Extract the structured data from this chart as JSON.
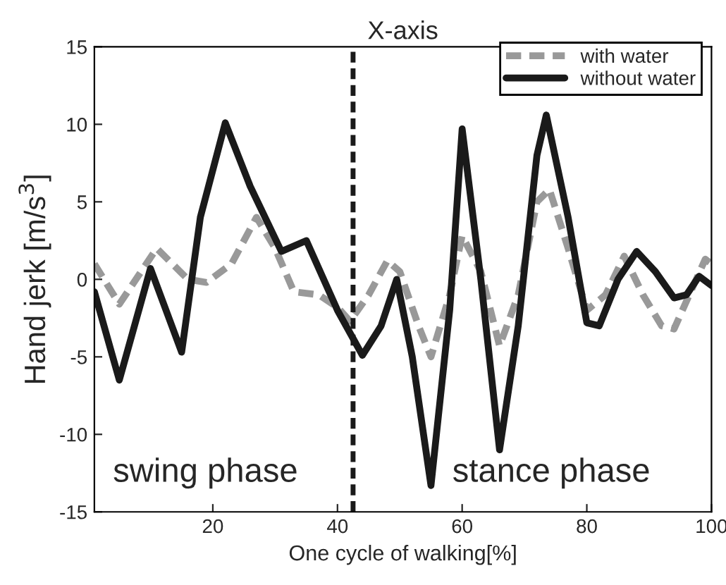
{
  "chart_data": {
    "type": "line",
    "title": "X-axis",
    "xlabel": "One cycle of walking[%]",
    "ylabel": "Hand jerk [m/s$^{3}$]",
    "xlim": [
      1,
      100
    ],
    "ylim": [
      -15,
      15
    ],
    "xticks": [
      20,
      40,
      60,
      80,
      100
    ],
    "yticks": [
      -15,
      -10,
      -5,
      0,
      5,
      10,
      15
    ],
    "grid": false,
    "legend": "top right",
    "series": [
      {
        "name": "with water",
        "color": "#999999",
        "line_style": "dashed",
        "x": [
          1,
          5,
          11,
          16,
          19,
          23,
          27,
          30,
          33,
          37,
          40,
          42,
          45,
          48,
          50,
          53,
          55,
          58,
          60,
          63,
          66,
          69,
          72,
          74,
          77,
          80,
          83,
          86,
          89,
          92,
          94,
          97,
          99,
          100
        ],
        "values": [
          1,
          -1.6,
          2,
          0,
          -0.2,
          1,
          4,
          2,
          -0.8,
          -1,
          -1.8,
          -2.7,
          -1,
          1.2,
          0.5,
          -3,
          -5,
          -1,
          2.8,
          0.5,
          -4.3,
          -1,
          5,
          5.8,
          2,
          -2,
          -1,
          1.5,
          -1,
          -3,
          -3.2,
          -0.5,
          1.3,
          1
        ]
      },
      {
        "name": "without water",
        "color": "#1a1a1a",
        "line_style": "solid",
        "x": [
          1,
          5,
          10,
          15,
          18,
          22,
          26,
          31,
          35,
          40,
          44,
          47,
          49.5,
          52,
          55,
          58,
          60,
          63,
          66,
          69,
          72,
          73.5,
          77,
          80,
          82,
          85,
          88,
          91,
          94,
          96,
          98,
          100
        ],
        "values": [
          -0.8,
          -6.5,
          0.7,
          -4.7,
          4,
          10.1,
          6,
          1.8,
          2.5,
          -2,
          -4.9,
          -3,
          0,
          -5,
          -13.3,
          -2,
          9.7,
          0,
          -11,
          -3,
          8,
          10.6,
          4,
          -2.8,
          -3,
          0,
          1.8,
          0.5,
          -1.2,
          -1,
          0.2,
          -0.4
        ]
      }
    ],
    "ref_lines": [
      {
        "axis": "x",
        "value": 42.5,
        "color": "#1a1a1a",
        "line_style": "dashed"
      }
    ],
    "annotations": [
      "swing phase",
      "stance phase"
    ]
  }
}
